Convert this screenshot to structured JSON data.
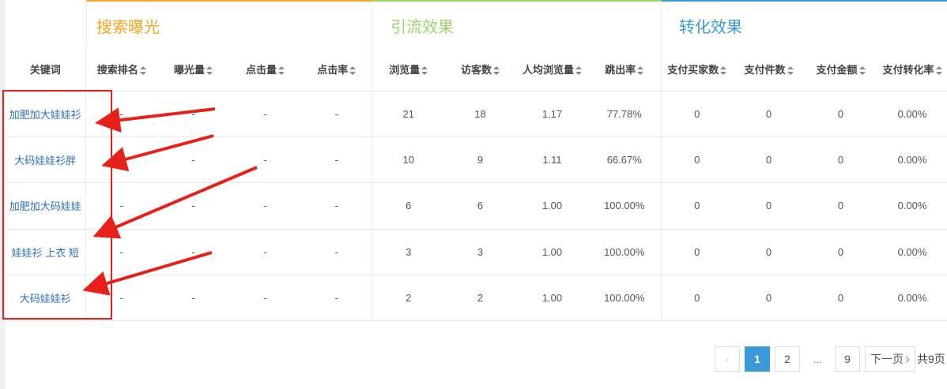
{
  "groups": [
    "搜索曝光",
    "引流效果",
    "转化效果"
  ],
  "columns": [
    "关键词",
    "搜索排名",
    "曝光量",
    "点击量",
    "点击率",
    "浏览量",
    "访客数",
    "人均浏览量",
    "跳出率",
    "支付买家数",
    "支付件数",
    "支付金额",
    "支付转化率"
  ],
  "sorted_column": "访客数",
  "rows": [
    [
      "加肥加大娃娃衫",
      "-",
      "-",
      "-",
      "-",
      "21",
      "18",
      "1.17",
      "77.78%",
      "0",
      "0",
      "0",
      "0.00%"
    ],
    [
      "大码娃娃衫胖",
      "-",
      "-",
      "-",
      "-",
      "10",
      "9",
      "1.11",
      "66.67%",
      "0",
      "0",
      "0",
      "0.00%"
    ],
    [
      "加肥加大码娃娃",
      "-",
      "-",
      "-",
      "-",
      "6",
      "6",
      "1.00",
      "100.00%",
      "0",
      "0",
      "0",
      "0.00%"
    ],
    [
      "娃娃衫 上衣 短",
      "-",
      "-",
      "-",
      "-",
      "3",
      "3",
      "1.00",
      "100.00%",
      "0",
      "0",
      "0",
      "0.00%"
    ],
    [
      "大码娃娃衫",
      "-",
      "-",
      "-",
      "-",
      "2",
      "2",
      "1.00",
      "100.00%",
      "0",
      "0",
      "0",
      "0.00%"
    ]
  ],
  "pagination": {
    "prev": "‹",
    "pages": [
      "1",
      "2"
    ],
    "ellipsis": "...",
    "last": "9",
    "next": "下一页",
    "next_icon": "›",
    "total": "共9页",
    "current": "1"
  },
  "colors": {
    "search": "#f5a623",
    "traffic": "#9ed36a",
    "conversion": "#3a9ad9",
    "annotation": "#e8201a"
  }
}
